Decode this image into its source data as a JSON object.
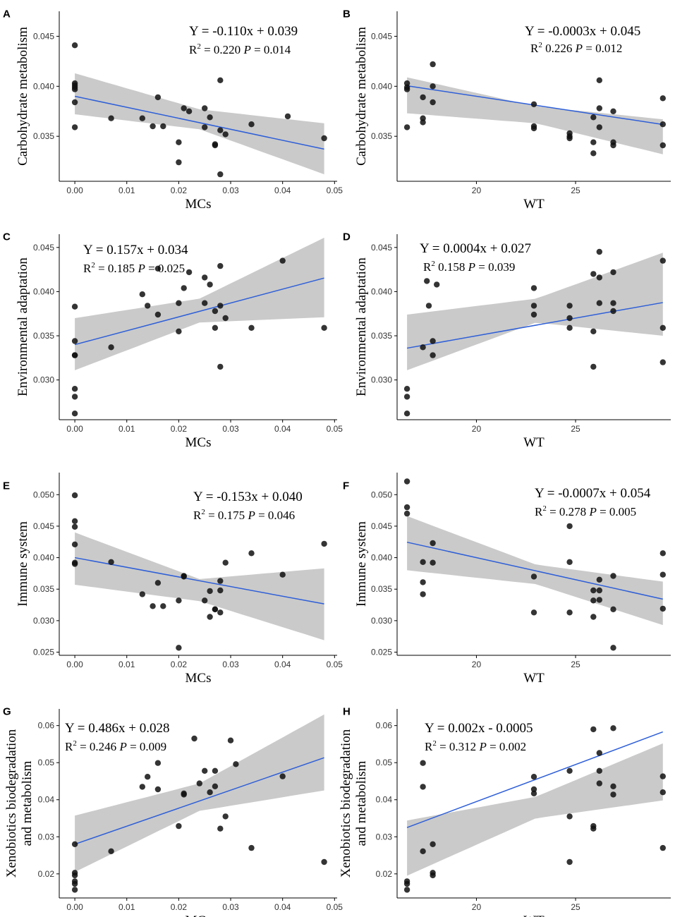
{
  "chart_data": [
    {
      "panel": "A",
      "type": "scatter",
      "xlabel": "MCs",
      "ylabel": "Carbohydrate metabolism",
      "equation": "Y = -0.110x + 0.039",
      "r2_prefix": "R",
      "r2_value": "= 0.220",
      "p_value": "= 0.014",
      "xlim": [
        -0.003,
        0.0505
      ],
      "ylim": [
        0.0305,
        0.0475
      ],
      "xticks": [
        0.0,
        0.01,
        0.02,
        0.03,
        0.04,
        0.05
      ],
      "xtick_labels": [
        "0.00",
        "0.01",
        "0.02",
        "0.03",
        "0.04",
        "0.05"
      ],
      "yticks": [
        0.035,
        0.04,
        0.045
      ],
      "ytick_labels": [
        "0.035",
        "0.040",
        "0.045"
      ],
      "fit": {
        "slope": -0.11,
        "intercept": 0.039
      },
      "ci": {
        "x": [
          0.0,
          0.024,
          0.048
        ],
        "lower": [
          0.0372,
          0.0357,
          0.0312
        ],
        "upper": [
          0.0413,
          0.0377,
          0.0363
        ]
      },
      "points": {
        "x": [
          0.0,
          0.0,
          0.0,
          0.0,
          0.0,
          0.0,
          0.0,
          0.007,
          0.013,
          0.015,
          0.016,
          0.017,
          0.02,
          0.02,
          0.021,
          0.022,
          0.025,
          0.025,
          0.026,
          0.027,
          0.027,
          0.028,
          0.028,
          0.028,
          0.029,
          0.034,
          0.041,
          0.048
        ],
        "y": [
          0.0441,
          0.0403,
          0.0401,
          0.0399,
          0.0397,
          0.0384,
          0.0359,
          0.0368,
          0.0368,
          0.036,
          0.0389,
          0.036,
          0.0344,
          0.0324,
          0.0378,
          0.0375,
          0.0359,
          0.0378,
          0.0369,
          0.0341,
          0.0342,
          0.0406,
          0.0312,
          0.0356,
          0.0352,
          0.0362,
          0.037,
          0.0348
        ]
      }
    },
    {
      "panel": "B",
      "type": "scatter",
      "xlabel": "WT",
      "ylabel": "Carbohydrate metabolism",
      "equation": "Y = -0.0003x + 0.045",
      "r2_prefix": "R",
      "r2_value": "0.226",
      "p_value": "= 0.012",
      "xlim": [
        16.0,
        29.8
      ],
      "ylim": [
        0.0305,
        0.0475
      ],
      "xticks": [
        20,
        25
      ],
      "xtick_labels": [
        "20",
        "25"
      ],
      "yticks": [
        0.035,
        0.04,
        0.045
      ],
      "ytick_labels": [
        "0.035",
        "0.040",
        "0.045"
      ],
      "fit": {
        "slope": -0.0003,
        "intercept": 0.045
      },
      "ci": {
        "x": [
          16.5,
          23.0,
          29.4
        ],
        "lower": [
          0.0373,
          0.0363,
          0.0332
        ],
        "upper": [
          0.0409,
          0.038,
          0.0367
        ]
      },
      "points": {
        "x": [
          16.5,
          16.5,
          16.5,
          16.5,
          17.3,
          17.3,
          17.3,
          17.8,
          17.8,
          17.8,
          22.9,
          22.9,
          22.9,
          24.7,
          24.7,
          24.7,
          25.9,
          25.9,
          25.9,
          26.2,
          26.2,
          26.2,
          26.9,
          26.9,
          26.9,
          29.4,
          29.4,
          29.4
        ],
        "y": [
          0.0403,
          0.0399,
          0.0397,
          0.0359,
          0.0389,
          0.0368,
          0.0364,
          0.0422,
          0.04,
          0.0384,
          0.0382,
          0.036,
          0.0358,
          0.0353,
          0.035,
          0.0348,
          0.0369,
          0.0344,
          0.0333,
          0.0406,
          0.0378,
          0.0359,
          0.0375,
          0.0344,
          0.0341,
          0.0388,
          0.0362,
          0.0341
        ]
      }
    },
    {
      "panel": "C",
      "type": "scatter",
      "xlabel": "MCs",
      "ylabel": "Environmental adaptation",
      "equation": "Y = 0.157x + 0.034",
      "r2_prefix": "R",
      "r2_value": "= 0.185",
      "p_value": "= 0.025",
      "xlim": [
        -0.003,
        0.0505
      ],
      "ylim": [
        0.0255,
        0.0465
      ],
      "xticks": [
        0.0,
        0.01,
        0.02,
        0.03,
        0.04,
        0.05
      ],
      "xtick_labels": [
        "0.00",
        "0.01",
        "0.02",
        "0.03",
        "0.04",
        "0.05"
      ],
      "yticks": [
        0.03,
        0.035,
        0.04,
        0.045
      ],
      "ytick_labels": [
        "0.030",
        "0.035",
        "0.040",
        "0.045"
      ],
      "fit": {
        "slope": 0.157,
        "intercept": 0.034
      },
      "ci": {
        "x": [
          0.0,
          0.024,
          0.048
        ],
        "lower": [
          0.0311,
          0.0365,
          0.0371
        ],
        "upper": [
          0.037,
          0.0392,
          0.0461
        ]
      },
      "points": {
        "x": [
          0.0,
          0.0,
          0.0,
          0.0,
          0.0,
          0.0,
          0.0,
          0.007,
          0.013,
          0.014,
          0.016,
          0.016,
          0.02,
          0.02,
          0.021,
          0.022,
          0.025,
          0.025,
          0.026,
          0.027,
          0.027,
          0.028,
          0.028,
          0.028,
          0.029,
          0.034,
          0.04,
          0.048
        ],
        "y": [
          0.0383,
          0.0344,
          0.0328,
          0.029,
          0.0281,
          0.0262,
          0.0328,
          0.0337,
          0.0397,
          0.0384,
          0.0426,
          0.0374,
          0.0387,
          0.0355,
          0.0404,
          0.0422,
          0.0387,
          0.0416,
          0.0408,
          0.0378,
          0.0359,
          0.0429,
          0.0315,
          0.0384,
          0.037,
          0.0359,
          0.0435,
          0.0359
        ]
      }
    },
    {
      "panel": "D",
      "type": "scatter",
      "xlabel": "WT",
      "ylabel": "Environmental adaptation",
      "equation": "Y = 0.0004x + 0.027",
      "r2_prefix": "R",
      "r2_value": "0.158",
      "p_value": "= 0.039",
      "xlim": [
        16.0,
        29.8
      ],
      "ylim": [
        0.0255,
        0.0465
      ],
      "xticks": [
        20,
        25
      ],
      "xtick_labels": [
        "20",
        "25"
      ],
      "yticks": [
        0.03,
        0.035,
        0.04,
        0.045
      ],
      "ytick_labels": [
        "0.030",
        "0.035",
        "0.040",
        "0.045"
      ],
      "fit": {
        "slope": 0.0004,
        "intercept": 0.027
      },
      "ci": {
        "x": [
          16.5,
          23.0,
          29.4
        ],
        "lower": [
          0.0311,
          0.0365,
          0.035
        ],
        "upper": [
          0.0374,
          0.0392,
          0.0444
        ]
      },
      "points": {
        "x": [
          16.5,
          16.5,
          16.5,
          17.3,
          17.5,
          17.6,
          17.8,
          17.8,
          18.0,
          22.9,
          22.9,
          22.9,
          24.7,
          24.7,
          24.7,
          25.9,
          25.9,
          25.9,
          26.2,
          26.2,
          26.2,
          26.9,
          26.9,
          26.9,
          29.4,
          29.4,
          29.4
        ],
        "y": [
          0.029,
          0.0281,
          0.0262,
          0.0337,
          0.0412,
          0.0384,
          0.0344,
          0.0328,
          0.0408,
          0.0404,
          0.0384,
          0.0374,
          0.0384,
          0.037,
          0.0359,
          0.042,
          0.0355,
          0.0315,
          0.0445,
          0.0416,
          0.0387,
          0.0422,
          0.0387,
          0.0378,
          0.0435,
          0.0359,
          0.032
        ]
      }
    },
    {
      "panel": "E",
      "type": "scatter",
      "xlabel": "MCs",
      "ylabel": "Immune system",
      "equation": "Y = -0.153x + 0.040",
      "r2_prefix": "R",
      "r2_value": "= 0.175",
      "p_value": "= 0.046",
      "xlim": [
        -0.003,
        0.0505
      ],
      "ylim": [
        0.0245,
        0.0535
      ],
      "xticks": [
        0.0,
        0.01,
        0.02,
        0.03,
        0.04,
        0.05
      ],
      "xtick_labels": [
        "0.00",
        "0.01",
        "0.02",
        "0.03",
        "0.04",
        "0.05"
      ],
      "yticks": [
        0.025,
        0.03,
        0.035,
        0.04,
        0.045,
        0.05
      ],
      "ytick_labels": [
        "0.025",
        "0.030",
        "0.035",
        "0.040",
        "0.045",
        "0.050"
      ],
      "fit": {
        "slope": -0.153,
        "intercept": 0.04
      },
      "ci": {
        "x": [
          0.0,
          0.024,
          0.048
        ],
        "lower": [
          0.0357,
          0.0331,
          0.0269
        ],
        "upper": [
          0.044,
          0.0366,
          0.0383
        ]
      },
      "points": {
        "x": [
          0.0,
          0.0,
          0.0,
          0.0,
          0.0,
          0.0,
          0.007,
          0.013,
          0.015,
          0.016,
          0.017,
          0.02,
          0.02,
          0.021,
          0.021,
          0.025,
          0.026,
          0.026,
          0.027,
          0.027,
          0.028,
          0.028,
          0.028,
          0.029,
          0.034,
          0.04,
          0.048
        ],
        "y": [
          0.0499,
          0.0458,
          0.0449,
          0.0421,
          0.0392,
          0.039,
          0.0393,
          0.0342,
          0.0323,
          0.036,
          0.0323,
          0.0332,
          0.0257,
          0.0371,
          0.037,
          0.0332,
          0.0347,
          0.0306,
          0.0318,
          0.0318,
          0.0363,
          0.0348,
          0.0313,
          0.0392,
          0.0407,
          0.0373,
          0.0422
        ]
      }
    },
    {
      "panel": "F",
      "type": "scatter",
      "xlabel": "WT",
      "ylabel": "Immune system",
      "equation": "Y = -0.0007x + 0.054",
      "r2_prefix": "R",
      "r2_value": "= 0.278",
      "p_value": "= 0.005",
      "xlim": [
        16.0,
        29.8
      ],
      "ylim": [
        0.0245,
        0.0535
      ],
      "xticks": [
        20,
        25
      ],
      "xtick_labels": [
        "20",
        "25"
      ],
      "yticks": [
        0.025,
        0.03,
        0.035,
        0.04,
        0.045,
        0.05
      ],
      "ytick_labels": [
        "0.025",
        "0.030",
        "0.035",
        "0.040",
        "0.045",
        "0.050"
      ],
      "fit": {
        "slope": -0.0007,
        "intercept": 0.054
      },
      "ci": {
        "x": [
          16.5,
          23.0,
          29.4
        ],
        "lower": [
          0.038,
          0.0358,
          0.0293
        ],
        "upper": [
          0.0466,
          0.0389,
          0.0362
        ]
      },
      "points": {
        "x": [
          16.5,
          16.5,
          16.5,
          17.3,
          17.3,
          17.3,
          17.8,
          17.8,
          22.9,
          22.9,
          24.7,
          24.7,
          24.7,
          25.9,
          25.9,
          25.9,
          26.2,
          26.2,
          26.2,
          26.9,
          26.9,
          26.9,
          29.4,
          29.4,
          29.4
        ],
        "y": [
          0.0521,
          0.048,
          0.047,
          0.0393,
          0.0361,
          0.0342,
          0.0423,
          0.0392,
          0.037,
          0.0313,
          0.045,
          0.0393,
          0.0313,
          0.0348,
          0.0332,
          0.0306,
          0.0365,
          0.0348,
          0.0333,
          0.0371,
          0.0318,
          0.0257,
          0.0407,
          0.0373,
          0.0319
        ]
      }
    },
    {
      "panel": "G",
      "type": "scatter",
      "xlabel": "MCs",
      "ylabel": "Xenobiotics biodegradation and metabolism",
      "ylabel_lines": [
        "Xenobiotics biodegradation",
        "and metabolism"
      ],
      "equation": "Y = 0.486x + 0.028",
      "r2_prefix": "R",
      "r2_value": "= 0.246",
      "p_value": "= 0.009",
      "xlim": [
        -0.003,
        0.0505
      ],
      "ylim": [
        0.0135,
        0.0645
      ],
      "xticks": [
        0.0,
        0.01,
        0.02,
        0.03,
        0.04,
        0.05
      ],
      "xtick_labels": [
        "0.00",
        "0.01",
        "0.02",
        "0.03",
        "0.04",
        "0.05"
      ],
      "yticks": [
        0.02,
        0.03,
        0.04,
        0.05,
        0.06
      ],
      "ytick_labels": [
        "0.02",
        "0.03",
        "0.04",
        "0.05",
        "0.06"
      ],
      "fit": {
        "slope": 0.486,
        "intercept": 0.028
      },
      "ci": {
        "x": [
          0.0,
          0.024,
          0.048
        ],
        "lower": [
          0.0205,
          0.037,
          0.0425
        ],
        "upper": [
          0.0357,
          0.0444,
          0.063
        ]
      },
      "points": {
        "x": [
          0.0,
          0.0,
          0.0,
          0.0,
          0.0,
          0.0,
          0.007,
          0.013,
          0.014,
          0.016,
          0.016,
          0.02,
          0.021,
          0.021,
          0.023,
          0.024,
          0.025,
          0.026,
          0.027,
          0.027,
          0.028,
          0.029,
          0.03,
          0.031,
          0.034,
          0.04,
          0.048
        ],
        "y": [
          0.028,
          0.0203,
          0.0196,
          0.018,
          0.0173,
          0.0157,
          0.0261,
          0.0435,
          0.0462,
          0.0499,
          0.0428,
          0.0329,
          0.0417,
          0.0414,
          0.0565,
          0.0444,
          0.0478,
          0.042,
          0.0436,
          0.0478,
          0.0322,
          0.0355,
          0.056,
          0.0496,
          0.027,
          0.0463,
          0.0232
        ]
      }
    },
    {
      "panel": "H",
      "type": "scatter",
      "xlabel": "WT",
      "ylabel": "Xenobiotics biodegradation and metabolism",
      "ylabel_lines": [
        "Xenobiotics biodegradation",
        "and metabolism"
      ],
      "equation": "Y = 0.002x - 0.0005",
      "r2_prefix": "R",
      "r2_value": "= 0.312",
      "p_value": "= 0.002",
      "xlim": [
        16.0,
        29.8
      ],
      "ylim": [
        0.0135,
        0.0645
      ],
      "xticks": [
        20,
        25
      ],
      "xtick_labels": [
        "20",
        "25"
      ],
      "yticks": [
        0.02,
        0.03,
        0.04,
        0.05,
        0.06
      ],
      "ytick_labels": [
        "0.02",
        "0.03",
        "0.04",
        "0.05",
        "0.06"
      ],
      "fit": {
        "slope": 0.002,
        "intercept": -0.0005
      },
      "ci": {
        "x": [
          16.5,
          23.0,
          29.4
        ],
        "lower": [
          0.0195,
          0.035,
          0.0398
        ],
        "upper": [
          0.0344,
          0.0408,
          0.0552
        ]
      },
      "points": {
        "x": [
          16.5,
          16.5,
          16.5,
          17.3,
          17.3,
          17.3,
          17.8,
          17.8,
          17.8,
          22.9,
          22.9,
          22.9,
          24.7,
          24.7,
          24.7,
          25.9,
          25.9,
          25.9,
          26.2,
          26.2,
          26.2,
          26.9,
          26.9,
          26.9,
          29.4,
          29.4,
          29.4
        ],
        "y": [
          0.018,
          0.0173,
          0.0157,
          0.0499,
          0.0435,
          0.0261,
          0.028,
          0.0203,
          0.0196,
          0.0462,
          0.0428,
          0.0417,
          0.0478,
          0.0355,
          0.0232,
          0.059,
          0.0329,
          0.0322,
          0.0526,
          0.0478,
          0.0444,
          0.0593,
          0.0436,
          0.0414,
          0.0463,
          0.042,
          0.027
        ]
      }
    }
  ]
}
